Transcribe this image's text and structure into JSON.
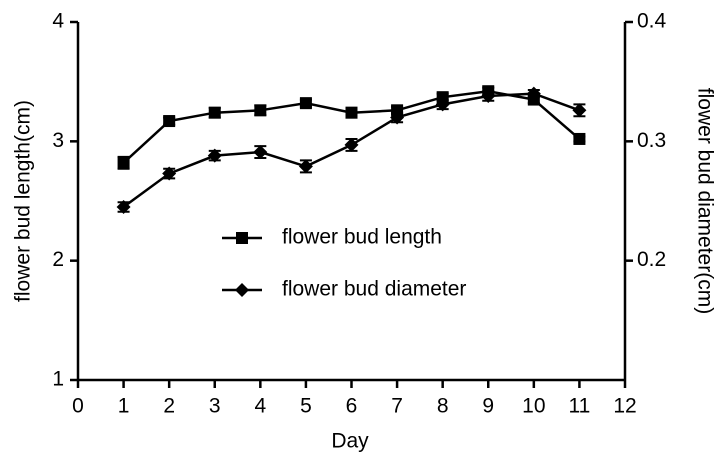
{
  "chart_data": {
    "type": "line",
    "x_label": "Day",
    "y_label": "flower bud length(cm)",
    "y2_label": "flower bud diameter(cm)",
    "x": [
      1,
      2,
      3,
      4,
      5,
      6,
      7,
      8,
      9,
      10,
      11
    ],
    "xlim": [
      0,
      12
    ],
    "xticks": [
      0,
      1,
      2,
      3,
      4,
      5,
      6,
      7,
      8,
      9,
      10,
      11,
      12
    ],
    "ylim": [
      1,
      4
    ],
    "yticks": [
      1,
      2,
      3,
      4
    ],
    "y2lim": [
      0.1,
      0.4
    ],
    "y2ticks": [
      0.2,
      0.3,
      0.4
    ],
    "legend": "center",
    "series": [
      {
        "name": "flower bud length",
        "color": "#000000",
        "marker": "square",
        "axis": "y",
        "values": [
          2.82,
          3.17,
          3.24,
          3.26,
          3.32,
          3.24,
          3.26,
          3.37,
          3.42,
          3.35,
          3.02
        ],
        "errors": [
          0.05,
          0.03,
          0.04,
          0.04,
          0.03,
          0.04,
          0.03,
          0.03,
          0.03,
          0.03,
          0.02
        ]
      },
      {
        "name": "flower bud diameter",
        "color": "#000000",
        "marker": "diamond",
        "axis": "y2",
        "values": [
          0.245,
          0.273,
          0.288,
          0.291,
          0.279,
          0.297,
          0.32,
          0.331,
          0.338,
          0.34,
          0.326
        ],
        "errors": [
          0.004,
          0.004,
          0.004,
          0.005,
          0.005,
          0.005,
          0.004,
          0.004,
          0.004,
          0.003,
          0.005
        ]
      }
    ]
  }
}
